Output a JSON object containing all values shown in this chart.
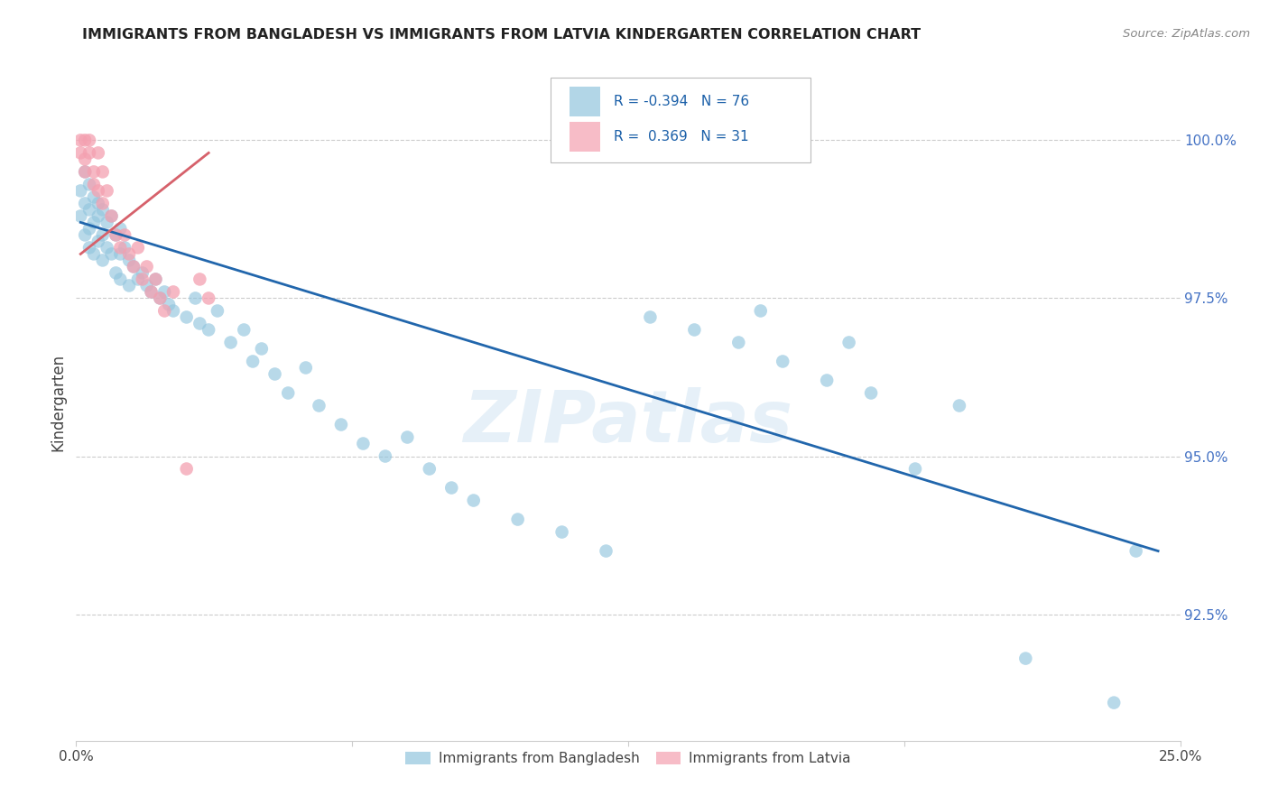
{
  "title": "IMMIGRANTS FROM BANGLADESH VS IMMIGRANTS FROM LATVIA KINDERGARTEN CORRELATION CHART",
  "source": "Source: ZipAtlas.com",
  "ylabel": "Kindergarten",
  "xlim": [
    0.0,
    0.25
  ],
  "ylim": [
    90.5,
    101.2
  ],
  "yticks": [
    92.5,
    95.0,
    97.5,
    100.0
  ],
  "legend_blue_r": "-0.394",
  "legend_blue_n": "76",
  "legend_pink_r": "0.369",
  "legend_pink_n": "31",
  "blue_color": "#92c5de",
  "pink_color": "#f4a0b0",
  "blue_line_color": "#2166ac",
  "pink_line_color": "#d6616b",
  "watermark": "ZIPatlas",
  "blue_x": [
    0.001,
    0.001,
    0.002,
    0.002,
    0.002,
    0.003,
    0.003,
    0.003,
    0.003,
    0.004,
    0.004,
    0.004,
    0.005,
    0.005,
    0.005,
    0.006,
    0.006,
    0.006,
    0.007,
    0.007,
    0.008,
    0.008,
    0.009,
    0.009,
    0.01,
    0.01,
    0.01,
    0.011,
    0.012,
    0.012,
    0.013,
    0.014,
    0.015,
    0.016,
    0.017,
    0.018,
    0.019,
    0.02,
    0.021,
    0.022,
    0.025,
    0.027,
    0.028,
    0.03,
    0.032,
    0.035,
    0.038,
    0.04,
    0.042,
    0.045,
    0.048,
    0.052,
    0.055,
    0.06,
    0.065,
    0.07,
    0.075,
    0.08,
    0.085,
    0.09,
    0.1,
    0.11,
    0.12,
    0.13,
    0.14,
    0.15,
    0.155,
    0.16,
    0.17,
    0.175,
    0.18,
    0.19,
    0.2,
    0.215,
    0.235,
    0.24
  ],
  "blue_y": [
    99.2,
    98.8,
    99.5,
    99.0,
    98.5,
    99.3,
    98.9,
    98.6,
    98.3,
    99.1,
    98.7,
    98.2,
    99.0,
    98.8,
    98.4,
    98.9,
    98.5,
    98.1,
    98.7,
    98.3,
    98.8,
    98.2,
    98.5,
    97.9,
    98.6,
    98.2,
    97.8,
    98.3,
    98.1,
    97.7,
    98.0,
    97.8,
    97.9,
    97.7,
    97.6,
    97.8,
    97.5,
    97.6,
    97.4,
    97.3,
    97.2,
    97.5,
    97.1,
    97.0,
    97.3,
    96.8,
    97.0,
    96.5,
    96.7,
    96.3,
    96.0,
    96.4,
    95.8,
    95.5,
    95.2,
    95.0,
    95.3,
    94.8,
    94.5,
    94.3,
    94.0,
    93.8,
    93.5,
    97.2,
    97.0,
    96.8,
    97.3,
    96.5,
    96.2,
    96.8,
    96.0,
    94.8,
    95.8,
    91.8,
    91.1,
    93.5
  ],
  "pink_x": [
    0.001,
    0.001,
    0.002,
    0.002,
    0.002,
    0.003,
    0.003,
    0.004,
    0.004,
    0.005,
    0.005,
    0.006,
    0.006,
    0.007,
    0.008,
    0.009,
    0.01,
    0.011,
    0.012,
    0.013,
    0.014,
    0.015,
    0.016,
    0.017,
    0.018,
    0.019,
    0.02,
    0.022,
    0.025,
    0.028,
    0.03
  ],
  "pink_y": [
    100.0,
    99.8,
    100.0,
    99.7,
    99.5,
    100.0,
    99.8,
    99.5,
    99.3,
    99.8,
    99.2,
    99.5,
    99.0,
    99.2,
    98.8,
    98.5,
    98.3,
    98.5,
    98.2,
    98.0,
    98.3,
    97.8,
    98.0,
    97.6,
    97.8,
    97.5,
    97.3,
    97.6,
    94.8,
    97.8,
    97.5
  ],
  "blue_line_x0": 0.001,
  "blue_line_x1": 0.245,
  "blue_line_y0": 98.7,
  "blue_line_y1": 93.5,
  "pink_line_x0": 0.001,
  "pink_line_x1": 0.03,
  "pink_line_y0": 98.2,
  "pink_line_y1": 99.8
}
